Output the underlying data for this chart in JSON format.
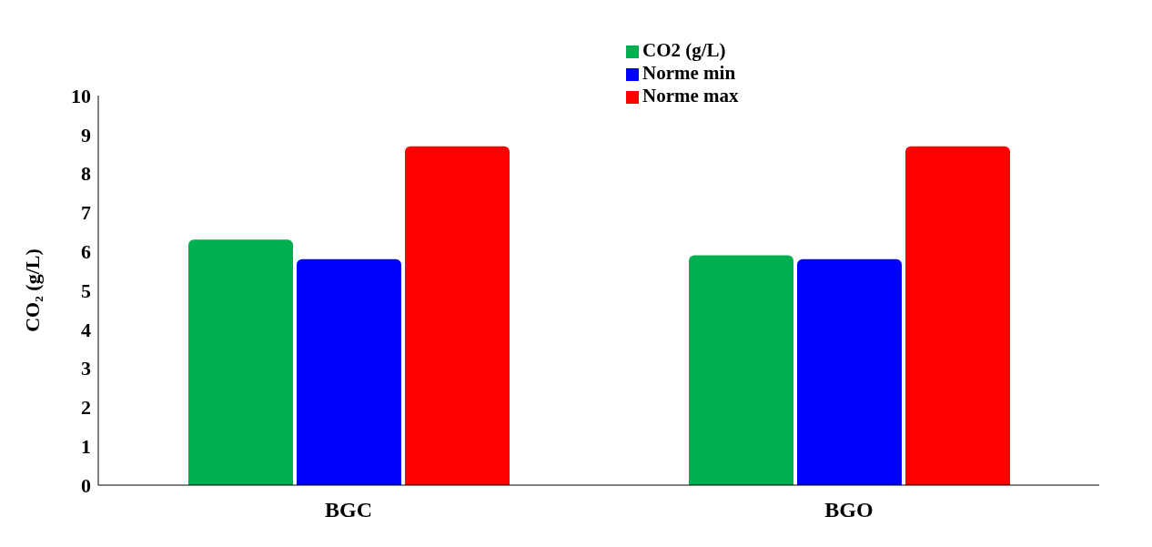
{
  "chart_data": {
    "type": "bar",
    "ylabel": "CO₂ (g/L)",
    "categories": [
      "BGC",
      "BGO"
    ],
    "series": [
      {
        "name": "CO2 (g/L)",
        "color": "#00b050",
        "values": [
          6.3,
          5.9
        ]
      },
      {
        "name": "Norme min",
        "color": "#0000ff",
        "values": [
          5.8,
          5.8
        ]
      },
      {
        "name": "Norme max",
        "color": "#ff0000",
        "values": [
          8.7,
          8.7
        ]
      }
    ],
    "ylim": [
      0,
      10
    ],
    "yticks": [
      0,
      1,
      2,
      3,
      4,
      5,
      6,
      7,
      8,
      9,
      10
    ],
    "grid": false,
    "legend": "top"
  }
}
